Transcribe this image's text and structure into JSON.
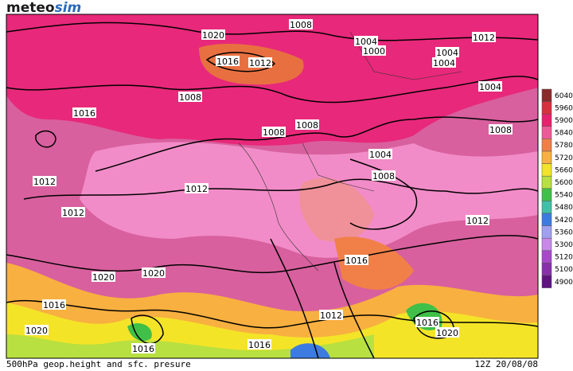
{
  "header": {
    "logo_main": "meteo",
    "logo_accent": "sim"
  },
  "contour_labels": [
    1020,
    1008,
    1004,
    1000,
    1012,
    1004,
    1004,
    1016,
    1012,
    1004,
    1008,
    1016,
    1008,
    1008,
    1008,
    1004,
    1008,
    1012,
    1012,
    1012,
    1012,
    1016,
    1020,
    1020,
    1016,
    1012,
    1016,
    1020,
    1020,
    1016,
    1016
  ],
  "legend": {
    "items": [
      {
        "label": 6040,
        "color": "#8b2a2a"
      },
      {
        "label": 5960,
        "color": "#d8303c"
      },
      {
        "label": 5900,
        "color": "#e8206e"
      },
      {
        "label": 5840,
        "color": "#ee5a98"
      },
      {
        "label": 5780,
        "color": "#f08048"
      },
      {
        "label": 5720,
        "color": "#f8b040"
      },
      {
        "label": 5660,
        "color": "#f4e428"
      },
      {
        "label": 5600,
        "color": "#b8e040"
      },
      {
        "label": 5540,
        "color": "#40c048"
      },
      {
        "label": 5480,
        "color": "#40c0a8"
      },
      {
        "label": 5420,
        "color": "#3c7ce0"
      },
      {
        "label": 5360,
        "color": "#a0a0f0"
      },
      {
        "label": 5300,
        "color": "#c888e8"
      },
      {
        "label": 5120,
        "color": "#a848c8"
      },
      {
        "label": 5100,
        "color": "#8830a8"
      },
      {
        "label": 4900,
        "color": "#601480"
      }
    ]
  },
  "footer": {
    "left": "500hPa geop.height and sfc. presure",
    "right": "12Z 20/08/08"
  }
}
